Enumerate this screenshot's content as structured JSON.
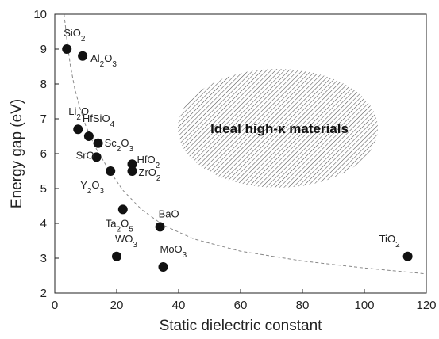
{
  "chart_data": {
    "type": "scatter",
    "title": "",
    "xlabel": "Static dielectric constant",
    "ylabel": "Energy gap (eV)",
    "xlim": [
      0,
      120
    ],
    "ylim": [
      2,
      10
    ],
    "xticks": [
      0,
      20,
      40,
      60,
      80,
      100,
      120
    ],
    "yticks": [
      2,
      3,
      4,
      5,
      6,
      7,
      8,
      9,
      10
    ],
    "grid": false,
    "marker_color": "#111111",
    "curve_color": "#888888",
    "points": [
      {
        "label": "SiO",
        "sub": "2",
        "x": 3.9,
        "y": 9.0
      },
      {
        "label": "Al",
        "sub": "2",
        "label2": "O",
        "sub2": "3",
        "x": 9,
        "y": 8.8
      },
      {
        "label": "Li",
        "sub": "2",
        "label2": "O",
        "x": 7.5,
        "y": 6.7
      },
      {
        "label": "HfSiO",
        "sub": "4",
        "x": 11,
        "y": 6.5
      },
      {
        "label": "Sc",
        "sub": "2",
        "label2": "O",
        "sub2": "3",
        "x": 14,
        "y": 6.3
      },
      {
        "label": "SrO",
        "x": 13.5,
        "y": 5.9
      },
      {
        "label": "Y",
        "sub": "2",
        "label2": "O",
        "sub2": "3",
        "x": 18,
        "y": 5.5
      },
      {
        "label": "HfO",
        "sub": "2",
        "x": 25,
        "y": 5.7
      },
      {
        "label": "ZrO",
        "sub": "2",
        "x": 25,
        "y": 5.5
      },
      {
        "label": "Ta",
        "sub": "2",
        "label2": "O",
        "sub2": "5",
        "x": 22,
        "y": 4.4
      },
      {
        "label": "BaO",
        "x": 34,
        "y": 3.9
      },
      {
        "label": "WO",
        "sub": "3",
        "x": 20,
        "y": 3.05
      },
      {
        "label": "MoO",
        "sub": "3",
        "x": 35,
        "y": 2.75
      },
      {
        "label": "TiO",
        "sub": "2",
        "x": 114,
        "y": 3.05
      }
    ],
    "annotation": "Ideal high-κ materials"
  }
}
